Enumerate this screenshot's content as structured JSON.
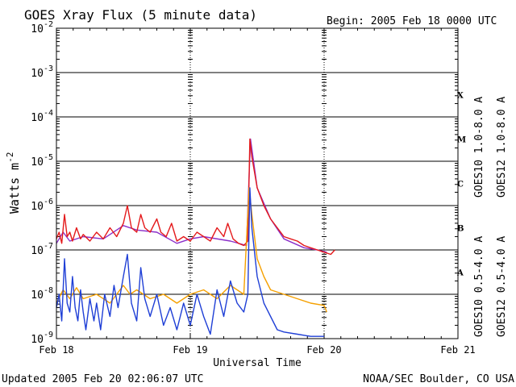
{
  "chart_data": {
    "type": "line",
    "title": "GOES Xray Flux (5 minute data)",
    "begin_label": "Begin:  2005 Feb 18 0000 UTC",
    "xlabel": "Universal Time",
    "ylabel_base": "Watts m",
    "ylabel_exp": "-2",
    "x_ticks": [
      "Feb 18",
      "Feb 19",
      "Feb 20",
      "Feb 21"
    ],
    "xlim_days": [
      0,
      3
    ],
    "ylim_exp": [
      -9,
      -2
    ],
    "y_ticks": [
      {
        "base": "10",
        "exp": "-9"
      },
      {
        "base": "10",
        "exp": "-8"
      },
      {
        "base": "10",
        "exp": "-7"
      },
      {
        "base": "10",
        "exp": "-6"
      },
      {
        "base": "10",
        "exp": "-5"
      },
      {
        "base": "10",
        "exp": "-4"
      },
      {
        "base": "10",
        "exp": "-3"
      },
      {
        "base": "10",
        "exp": "-2"
      }
    ],
    "flare_classes": [
      {
        "label": "A",
        "exp": -7.5
      },
      {
        "label": "B",
        "exp": -6.5
      },
      {
        "label": "C",
        "exp": -5.5
      },
      {
        "label": "M",
        "exp": -4.5
      },
      {
        "label": "X",
        "exp": -3.5
      }
    ],
    "series": [
      {
        "name": "GOES10 1.0-8.0 A",
        "color": "#8b2fc9",
        "points": [
          [
            0.0,
            -6.85
          ],
          [
            0.05,
            -6.6
          ],
          [
            0.1,
            -6.8
          ],
          [
            0.2,
            -6.7
          ],
          [
            0.35,
            -6.75
          ],
          [
            0.5,
            -6.45
          ],
          [
            0.6,
            -6.55
          ],
          [
            0.75,
            -6.6
          ],
          [
            0.9,
            -6.85
          ],
          [
            1.0,
            -6.75
          ],
          [
            1.1,
            -6.7
          ],
          [
            1.3,
            -6.8
          ],
          [
            1.42,
            -6.9
          ],
          [
            1.45,
            -4.5
          ],
          [
            1.5,
            -5.6
          ],
          [
            1.6,
            -6.3
          ],
          [
            1.7,
            -6.75
          ],
          [
            1.85,
            -6.95
          ],
          [
            1.95,
            -7.0
          ],
          [
            2.02,
            -7.05
          ]
        ]
      },
      {
        "name": "GOES12 1.0-8.0 A",
        "color": "#e41a1c",
        "points": [
          [
            0.0,
            -6.75
          ],
          [
            0.02,
            -6.6
          ],
          [
            0.04,
            -6.85
          ],
          [
            0.06,
            -6.2
          ],
          [
            0.08,
            -6.7
          ],
          [
            0.1,
            -6.6
          ],
          [
            0.12,
            -6.8
          ],
          [
            0.15,
            -6.5
          ],
          [
            0.18,
            -6.75
          ],
          [
            0.2,
            -6.65
          ],
          [
            0.25,
            -6.8
          ],
          [
            0.3,
            -6.6
          ],
          [
            0.35,
            -6.75
          ],
          [
            0.4,
            -6.5
          ],
          [
            0.45,
            -6.7
          ],
          [
            0.5,
            -6.4
          ],
          [
            0.53,
            -6.0
          ],
          [
            0.56,
            -6.5
          ],
          [
            0.6,
            -6.6
          ],
          [
            0.63,
            -6.2
          ],
          [
            0.66,
            -6.5
          ],
          [
            0.7,
            -6.6
          ],
          [
            0.75,
            -6.3
          ],
          [
            0.78,
            -6.6
          ],
          [
            0.82,
            -6.7
          ],
          [
            0.86,
            -6.4
          ],
          [
            0.9,
            -6.8
          ],
          [
            0.95,
            -6.7
          ],
          [
            1.0,
            -6.8
          ],
          [
            1.05,
            -6.6
          ],
          [
            1.1,
            -6.7
          ],
          [
            1.15,
            -6.8
          ],
          [
            1.2,
            -6.5
          ],
          [
            1.25,
            -6.7
          ],
          [
            1.28,
            -6.4
          ],
          [
            1.32,
            -6.75
          ],
          [
            1.36,
            -6.85
          ],
          [
            1.4,
            -6.9
          ],
          [
            1.43,
            -6.8
          ],
          [
            1.445,
            -4.5
          ],
          [
            1.46,
            -4.9
          ],
          [
            1.5,
            -5.6
          ],
          [
            1.55,
            -6.0
          ],
          [
            1.6,
            -6.3
          ],
          [
            1.65,
            -6.5
          ],
          [
            1.7,
            -6.7
          ],
          [
            1.75,
            -6.75
          ],
          [
            1.8,
            -6.8
          ],
          [
            1.85,
            -6.9
          ],
          [
            1.9,
            -6.95
          ],
          [
            1.95,
            -7.0
          ],
          [
            2.0,
            -7.05
          ],
          [
            2.05,
            -7.1
          ],
          [
            2.08,
            -7.0
          ]
        ]
      },
      {
        "name": "GOES10 0.5-4.0 A",
        "color": "#f5a000",
        "points": [
          [
            0.0,
            -8.2
          ],
          [
            0.05,
            -7.9
          ],
          [
            0.1,
            -8.1
          ],
          [
            0.15,
            -7.85
          ],
          [
            0.2,
            -8.1
          ],
          [
            0.3,
            -8.0
          ],
          [
            0.4,
            -8.2
          ],
          [
            0.5,
            -7.8
          ],
          [
            0.55,
            -8.0
          ],
          [
            0.6,
            -7.9
          ],
          [
            0.7,
            -8.1
          ],
          [
            0.8,
            -8.0
          ],
          [
            0.9,
            -8.2
          ],
          [
            1.0,
            -8.0
          ],
          [
            1.1,
            -7.9
          ],
          [
            1.2,
            -8.1
          ],
          [
            1.3,
            -7.8
          ],
          [
            1.4,
            -8.0
          ],
          [
            1.44,
            -5.6
          ],
          [
            1.46,
            -6.2
          ],
          [
            1.5,
            -7.2
          ],
          [
            1.55,
            -7.6
          ],
          [
            1.6,
            -7.9
          ],
          [
            1.7,
            -8.0
          ],
          [
            1.8,
            -8.1
          ],
          [
            1.9,
            -8.2
          ],
          [
            2.0,
            -8.25
          ],
          [
            2.02,
            -8.4
          ]
        ]
      },
      {
        "name": "GOES12 0.5-4.0 A",
        "color": "#1f3fd6",
        "points": [
          [
            0.0,
            -8.3
          ],
          [
            0.02,
            -8.0
          ],
          [
            0.04,
            -8.6
          ],
          [
            0.06,
            -7.2
          ],
          [
            0.08,
            -8.2
          ],
          [
            0.1,
            -8.4
          ],
          [
            0.12,
            -7.6
          ],
          [
            0.14,
            -8.3
          ],
          [
            0.16,
            -8.6
          ],
          [
            0.18,
            -7.9
          ],
          [
            0.2,
            -8.4
          ],
          [
            0.22,
            -8.8
          ],
          [
            0.25,
            -8.1
          ],
          [
            0.28,
            -8.6
          ],
          [
            0.3,
            -8.2
          ],
          [
            0.33,
            -8.8
          ],
          [
            0.36,
            -8.0
          ],
          [
            0.4,
            -8.5
          ],
          [
            0.43,
            -7.8
          ],
          [
            0.46,
            -8.3
          ],
          [
            0.5,
            -7.6
          ],
          [
            0.53,
            -7.1
          ],
          [
            0.56,
            -8.2
          ],
          [
            0.6,
            -8.6
          ],
          [
            0.63,
            -7.4
          ],
          [
            0.66,
            -8.1
          ],
          [
            0.7,
            -8.5
          ],
          [
            0.75,
            -8.0
          ],
          [
            0.8,
            -8.7
          ],
          [
            0.85,
            -8.3
          ],
          [
            0.9,
            -8.8
          ],
          [
            0.95,
            -8.2
          ],
          [
            1.0,
            -8.7
          ],
          [
            1.05,
            -8.0
          ],
          [
            1.1,
            -8.5
          ],
          [
            1.15,
            -8.9
          ],
          [
            1.2,
            -7.9
          ],
          [
            1.25,
            -8.5
          ],
          [
            1.3,
            -7.7
          ],
          [
            1.35,
            -8.2
          ],
          [
            1.4,
            -8.4
          ],
          [
            1.43,
            -8.0
          ],
          [
            1.445,
            -5.6
          ],
          [
            1.46,
            -6.5
          ],
          [
            1.5,
            -7.6
          ],
          [
            1.55,
            -8.2
          ],
          [
            1.6,
            -8.5
          ],
          [
            1.65,
            -8.8
          ],
          [
            1.7,
            -8.85
          ],
          [
            1.8,
            -8.9
          ],
          [
            1.9,
            -8.95
          ],
          [
            2.0,
            -8.95
          ]
        ]
      }
    ]
  },
  "footer": {
    "updated": "Updated 2005 Feb 20 02:06:07 UTC",
    "source": "NOAA/SEC Boulder, CO USA"
  }
}
